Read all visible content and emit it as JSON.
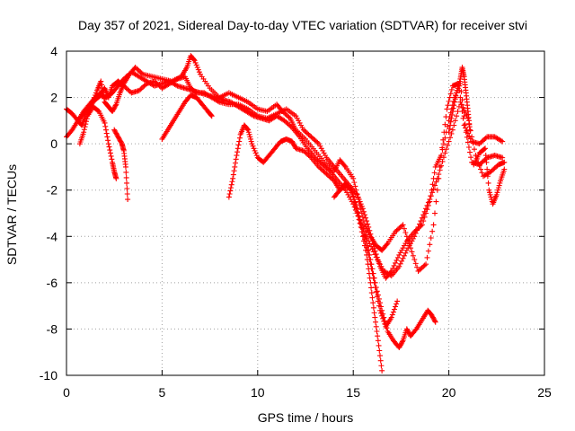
{
  "chart_data": {
    "type": "scatter",
    "title": "Day 357 of 2021, Sidereal Day-to-day VTEC variation (SDTVAR) for receiver stvi",
    "xlabel": "GPS time / hours",
    "ylabel": "SDTVAR / TECUs",
    "xlim": [
      0,
      25
    ],
    "ylim": [
      -10,
      4
    ],
    "xticks": [
      "0",
      "5",
      "10",
      "15",
      "20",
      "25"
    ],
    "yticks": [
      "4",
      "2",
      "0",
      "-2",
      "-4",
      "-6",
      "-8",
      "-10"
    ],
    "grid": true,
    "marker": "+",
    "color": "#ff0000",
    "series": [
      {
        "x": [
          0.0,
          0.3,
          0.6,
          0.8,
          1.0,
          1.3,
          1.6,
          1.8,
          2.0,
          2.2,
          2.4,
          2.6,
          2.8,
          3.0,
          3.3,
          3.6,
          4.0,
          4.5,
          5.0,
          5.5,
          6.0,
          6.3,
          6.5,
          6.7,
          7.0,
          7.5,
          8.0,
          8.5,
          9.0,
          9.5,
          10.0,
          10.5,
          11.0,
          11.3,
          11.7,
          12.0,
          12.5,
          13.0,
          13.5,
          14.0,
          14.3,
          14.6,
          15.0,
          15.3,
          15.6,
          15.9,
          16.2,
          16.5,
          16.8,
          17.2,
          17.6,
          18.0,
          18.4,
          18.8,
          19.2,
          19.6,
          19.9,
          20.2,
          20.5,
          20.8,
          21.2,
          21.6,
          22.0,
          22.4,
          22.8
        ],
        "y": [
          1.5,
          1.3,
          1.0,
          0.8,
          1.2,
          1.7,
          2.3,
          2.7,
          1.8,
          1.6,
          1.4,
          1.7,
          2.2,
          2.6,
          3.0,
          3.3,
          3.0,
          2.9,
          2.8,
          2.7,
          2.9,
          3.3,
          3.8,
          3.6,
          3.0,
          2.4,
          2.0,
          2.2,
          2.0,
          1.8,
          1.5,
          1.4,
          1.7,
          1.4,
          1.1,
          0.6,
          0.2,
          -0.3,
          -0.8,
          -1.2,
          -0.7,
          -1.0,
          -1.5,
          -2.5,
          -3.5,
          -4.0,
          -4.4,
          -4.6,
          -4.3,
          -3.8,
          -3.5,
          -4.5,
          -5.5,
          -5.2,
          -3.5,
          -0.5,
          1.5,
          2.5,
          2.6,
          0.8,
          0.1,
          0.0,
          0.3,
          0.3,
          0.1
        ]
      },
      {
        "x": [
          0.0,
          0.3,
          0.6,
          0.9,
          1.2,
          1.5,
          1.8,
          2.0,
          2.2,
          2.4,
          2.7,
          3.0,
          3.4,
          3.8,
          4.2,
          4.6,
          5.0,
          5.4,
          5.8,
          6.2,
          6.5,
          6.8,
          7.2,
          7.6,
          8.0,
          8.5,
          9.0,
          9.5,
          10.0,
          10.5,
          11.0,
          11.5,
          12.0,
          12.4,
          12.8,
          13.2,
          13.6,
          14.0,
          14.4,
          14.8,
          15.2,
          15.5,
          15.8,
          16.1,
          16.4,
          16.7,
          17.0,
          17.4,
          17.8,
          18.2,
          18.6,
          19.0,
          19.3,
          19.6,
          20.0,
          20.3,
          20.6,
          20.9,
          21.2,
          21.6,
          22.0,
          22.4,
          22.8
        ],
        "y": [
          0.3,
          0.6,
          1.0,
          1.4,
          1.7,
          2.0,
          2.2,
          2.4,
          2.0,
          2.5,
          2.7,
          2.5,
          2.2,
          2.3,
          2.6,
          2.7,
          2.4,
          2.6,
          2.8,
          2.9,
          2.4,
          2.2,
          2.2,
          2.0,
          1.8,
          1.7,
          1.7,
          1.5,
          1.2,
          1.1,
          1.3,
          1.5,
          1.2,
          0.6,
          0.3,
          0.0,
          -0.6,
          -1.0,
          -1.4,
          -1.8,
          -2.2,
          -2.8,
          -3.6,
          -4.5,
          -5.3,
          -5.8,
          -5.5,
          -4.8,
          -4.2,
          -3.8,
          -3.5,
          -2.5,
          -1.0,
          -0.5,
          1.0,
          2.0,
          2.6,
          0.5,
          -0.8,
          -0.9,
          -0.6,
          -0.5,
          -0.6
        ]
      },
      {
        "x": [
          0.6,
          0.9,
          1.2,
          1.5,
          1.8,
          2.1,
          2.4,
          2.7,
          3.0,
          3.4,
          3.8,
          4.2,
          4.6,
          5.0,
          5.4,
          5.8,
          6.2,
          6.6,
          7.0,
          7.4,
          7.8,
          8.2,
          8.6,
          9.0,
          9.4,
          9.8,
          10.2,
          10.6,
          11.0,
          11.4,
          11.8,
          12.2,
          12.6,
          13.0,
          13.4,
          13.8,
          14.2,
          14.6,
          15.0,
          15.4,
          15.8,
          16.2,
          16.6,
          17.0,
          17.4,
          17.8,
          18.2,
          18.6,
          19.0,
          19.4,
          19.8,
          20.2,
          20.6,
          21.0,
          21.4,
          21.8,
          22.2,
          22.6,
          22.9
        ],
        "y": [
          1.0,
          1.3,
          1.6,
          1.9,
          2.1,
          2.0,
          2.2,
          2.5,
          2.8,
          3.1,
          2.9,
          2.7,
          2.5,
          2.6,
          2.7,
          2.5,
          2.4,
          2.3,
          2.2,
          2.1,
          2.0,
          1.9,
          1.8,
          1.6,
          1.4,
          1.2,
          1.1,
          1.0,
          1.2,
          1.0,
          0.7,
          0.3,
          -0.2,
          -0.6,
          -0.9,
          -1.2,
          -1.6,
          -2.0,
          -2.6,
          -3.4,
          -4.2,
          -4.9,
          -5.5,
          -5.7,
          -5.3,
          -4.6,
          -4.0,
          -3.2,
          -2.4,
          -1.5,
          -0.4,
          0.6,
          1.8,
          1.1,
          -0.5,
          -1.4,
          -1.2,
          -0.9,
          -0.8
        ]
      },
      {
        "x": [
          0.7,
          0.9,
          1.1,
          1.4,
          1.7,
          2.0,
          2.2,
          2.4,
          2.5,
          2.6
        ],
        "y": [
          0.0,
          0.5,
          1.2,
          1.6,
          1.4,
          0.9,
          0.0,
          -0.8,
          -1.2,
          -1.5
        ]
      },
      {
        "x": [
          2.5,
          2.7,
          2.9,
          3.0,
          3.1,
          3.2
        ],
        "y": [
          0.6,
          0.3,
          0.0,
          -0.3,
          -1.0,
          -2.4
        ]
      },
      {
        "x": [
          5.0,
          5.3,
          5.6,
          5.9,
          6.2,
          6.5,
          6.8,
          7.1,
          7.4,
          7.6
        ],
        "y": [
          0.2,
          0.6,
          1.0,
          1.4,
          1.8,
          2.1,
          2.0,
          1.7,
          1.4,
          1.2
        ]
      },
      {
        "x": [
          8.5,
          8.7,
          8.9,
          9.1,
          9.3,
          9.5,
          9.7,
          10.0,
          10.3,
          10.6,
          10.9,
          11.2,
          11.5,
          11.8,
          12.0,
          12.4,
          12.8,
          13.2,
          13.6,
          14.0,
          14.3,
          14.6,
          14.9,
          15.1,
          15.4,
          15.7,
          15.9,
          16.1,
          16.3,
          16.5
        ],
        "y": [
          -2.3,
          -1.5,
          -0.5,
          0.4,
          0.8,
          0.6,
          0.0,
          -0.6,
          -0.8,
          -0.5,
          -0.2,
          0.1,
          0.2,
          0.1,
          -0.2,
          -0.3,
          -0.6,
          -1.0,
          -1.3,
          -1.6,
          -2.0,
          -1.8,
          -2.0,
          -2.6,
          -3.6,
          -4.8,
          -6.0,
          -7.3,
          -8.5,
          -9.8
        ]
      },
      {
        "x": [
          15.6,
          15.9,
          16.2,
          16.5,
          16.8,
          17.1,
          17.4,
          17.6,
          17.8,
          18.0,
          18.3,
          18.6,
          18.9,
          19.1,
          19.3
        ],
        "y": [
          -3.8,
          -5.0,
          -6.2,
          -7.2,
          -8.1,
          -8.5,
          -8.8,
          -8.5,
          -8.0,
          -8.3,
          -8.0,
          -7.6,
          -7.2,
          -7.4,
          -7.7
        ]
      },
      {
        "x": [
          14.0,
          14.3,
          14.6,
          14.9,
          15.2,
          15.5,
          15.8,
          16.1,
          16.4,
          16.7,
          17.0,
          17.3
        ],
        "y": [
          -2.3,
          -2.0,
          -1.7,
          -2.0,
          -2.8,
          -3.8,
          -4.8,
          -6.0,
          -7.2,
          -7.9,
          -7.5,
          -6.8
        ]
      },
      {
        "x": [
          20.0,
          20.2,
          20.4,
          20.6,
          20.7,
          20.8,
          20.9,
          21.0,
          21.1
        ],
        "y": [
          0.5,
          1.4,
          2.2,
          2.8,
          3.3,
          2.9,
          2.2,
          1.4,
          0.6
        ]
      },
      {
        "x": [
          21.3,
          21.6,
          21.9,
          22.1,
          22.3,
          22.5,
          22.7,
          22.9
        ],
        "y": [
          -0.9,
          -0.4,
          -0.2,
          -2.0,
          -2.6,
          -2.2,
          -1.6,
          -1.1
        ]
      }
    ]
  }
}
